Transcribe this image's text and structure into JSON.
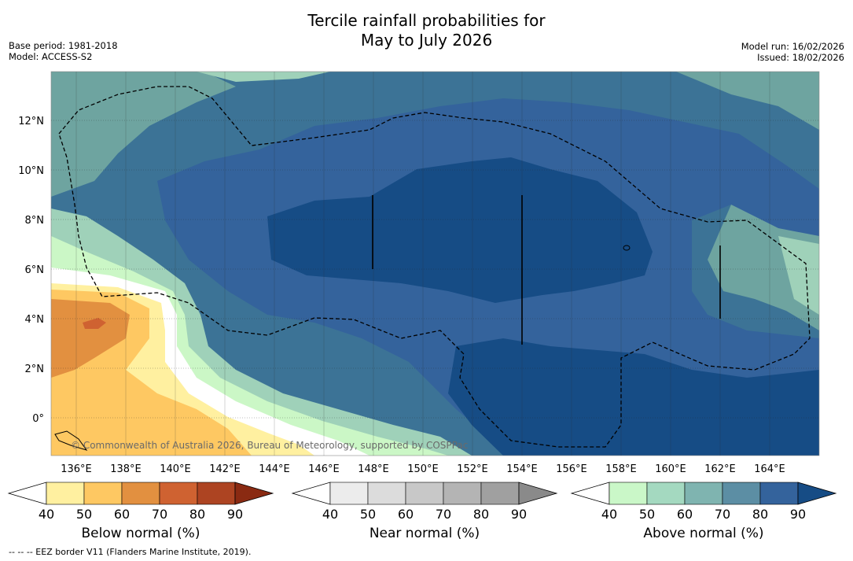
{
  "header": {
    "title_line1": "Tercile rainfall probabilities for",
    "title_line2": "May to July 2026",
    "base_period": "Base period: 1981-2018",
    "model": "Model: ACCESS-S2",
    "model_run": "Model run: 16/02/2026",
    "issued": "Issued: 18/02/2026"
  },
  "map": {
    "lat_ticks": [
      "12°N",
      "10°N",
      "8°N",
      "6°N",
      "4°N",
      "2°N",
      "0°"
    ],
    "lon_ticks": [
      "136°E",
      "138°E",
      "140°E",
      "142°E",
      "144°E",
      "146°E",
      "148°E",
      "150°E",
      "152°E",
      "154°E",
      "156°E",
      "158°E",
      "160°E",
      "162°E",
      "164°E"
    ],
    "copyright": "© Commonwealth of Australia 2026, Bureau of Meteorology, supported by COSPPac"
  },
  "colorbars": {
    "levels": [
      "40",
      "50",
      "60",
      "70",
      "80",
      "90"
    ],
    "below": {
      "title": "Below normal (%)",
      "colors": [
        "#ffffff",
        "#fff0a0",
        "#fec862",
        "#e29040",
        "#cf6231",
        "#ad4422",
        "#8a2a12"
      ]
    },
    "near": {
      "title": "Near normal (%)",
      "colors": [
        "#ffffff",
        "#ececec",
        "#dcdcdc",
        "#c8c8c8",
        "#b4b4b4",
        "#a0a0a0",
        "#8a8a8a"
      ]
    },
    "above": {
      "title": "Above normal (%)",
      "colors": [
        "#ffffff",
        "#caf7c8",
        "#a4d9c0",
        "#7fb4b0",
        "#5c8ea4",
        "#34639c",
        "#164c85"
      ]
    }
  },
  "footer": {
    "legend": "--  --  -- EEZ border V11 (Flanders Marine Institute, 2019)."
  }
}
